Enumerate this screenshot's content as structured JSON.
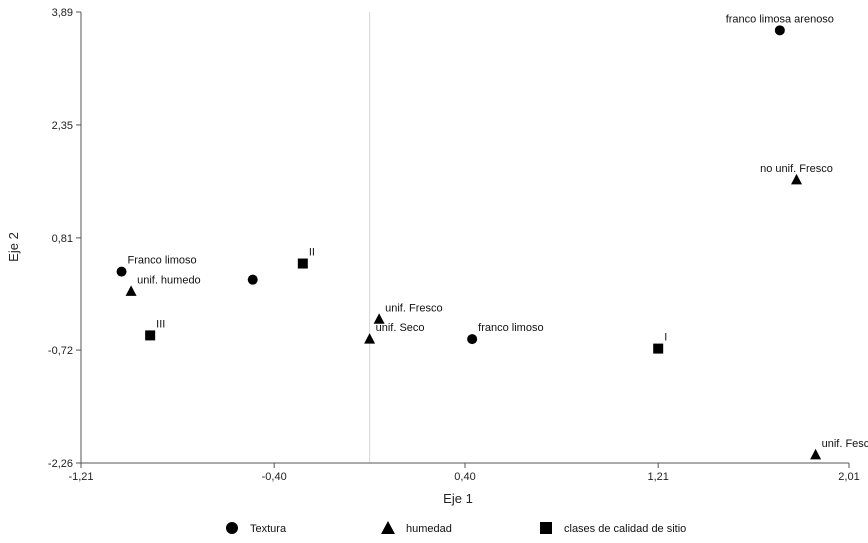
{
  "chart_data": {
    "type": "scatter",
    "title": "",
    "xlabel": "Eje 1",
    "ylabel": "Eje 2",
    "xlim": [
      -1.21,
      2.01
    ],
    "ylim": [
      -2.26,
      3.89
    ],
    "xticks": [
      -1.21,
      -0.4,
      0.4,
      1.21,
      2.01
    ],
    "xtick_labels": [
      "-1,21",
      "-0,40",
      "0,40",
      "1,21",
      "2,01"
    ],
    "yticks": [
      -2.26,
      -0.72,
      0.81,
      2.35,
      3.89
    ],
    "ytick_labels": [
      "-2,26",
      "-0,72",
      "0,81",
      "2,35",
      "3,89"
    ],
    "reference_line_x": 0,
    "series": [
      {
        "name": "Textura",
        "marker": "circle",
        "points": [
          {
            "x": 1.72,
            "y": 3.64,
            "label": "franco limosa arenoso"
          },
          {
            "x": -1.04,
            "y": 0.35,
            "label": "Franco limoso"
          },
          {
            "x": -0.49,
            "y": 0.24,
            "label": ""
          },
          {
            "x": 0.43,
            "y": -0.57,
            "label": "franco limoso"
          }
        ]
      },
      {
        "name": "humedad",
        "marker": "triangle",
        "points": [
          {
            "x": 1.79,
            "y": 1.6,
            "label": "no unif. Fresco"
          },
          {
            "x": -1.0,
            "y": 0.08,
            "label": "unif. humedo"
          },
          {
            "x": 0.04,
            "y": -0.3,
            "label": "unif. Fresco"
          },
          {
            "x": 0.0,
            "y": -0.57,
            "label": "unif. Seco"
          },
          {
            "x": 1.87,
            "y": -2.15,
            "label": "unif. Fesco"
          }
        ]
      },
      {
        "name": "clases de calidad de sitio",
        "marker": "square",
        "points": [
          {
            "x": -0.28,
            "y": 0.46,
            "label": "II"
          },
          {
            "x": -0.92,
            "y": -0.52,
            "label": "III"
          },
          {
            "x": 1.21,
            "y": -0.7,
            "label": "I"
          }
        ]
      }
    ],
    "legend": {
      "placement": "bottom",
      "entries": [
        "Textura",
        "humedad",
        "clases de calidad de sitio"
      ]
    }
  },
  "colors": {
    "marker": "#000000",
    "axis": "#555555",
    "reference_line": "#d6d6d6"
  }
}
